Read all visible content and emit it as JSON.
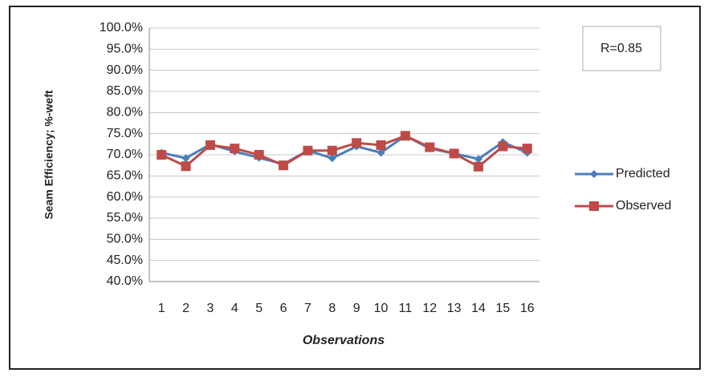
{
  "chart_data": {
    "type": "line",
    "y_label": "Seam Efficiency; %-weft",
    "x_label": "Observations",
    "annotation": "R=0.85",
    "categories": [
      "1",
      "2",
      "3",
      "4",
      "5",
      "6",
      "7",
      "8",
      "9",
      "10",
      "11",
      "12",
      "13",
      "14",
      "15",
      "16"
    ],
    "series": [
      {
        "name": "Predicted",
        "color": "#4a7ebb",
        "marker": "diamond",
        "values": [
          70.5,
          69.2,
          72.5,
          70.8,
          69.3,
          67.8,
          71,
          69.2,
          72,
          70.5,
          74.5,
          71.5,
          70.3,
          69,
          73,
          70.5
        ]
      },
      {
        "name": "Observed",
        "color": "#be4b48",
        "marker": "square",
        "values": [
          70,
          67.3,
          72.3,
          71.5,
          70,
          67.5,
          71,
          71,
          72.8,
          72.3,
          74.5,
          71.8,
          70.3,
          67.2,
          72,
          71.5
        ]
      }
    ],
    "ylim": [
      40,
      100
    ],
    "yticks": [
      {
        "value": 40,
        "label": "40.0%"
      },
      {
        "value": 45,
        "label": "45.0%"
      },
      {
        "value": 50,
        "label": "50.0%"
      },
      {
        "value": 55,
        "label": "55.0%"
      },
      {
        "value": 60,
        "label": "60.0%"
      },
      {
        "value": 65,
        "label": "65.0%"
      },
      {
        "value": 70,
        "label": "70.0%"
      },
      {
        "value": 75,
        "label": "75.0%"
      },
      {
        "value": 80,
        "label": "80.0%"
      },
      {
        "value": 85,
        "label": "85.0%"
      },
      {
        "value": 90,
        "label": "90.0%"
      },
      {
        "value": 95,
        "label": "95.0%"
      },
      {
        "value": 100,
        "label": "100.0%"
      }
    ],
    "grid": true,
    "legend": "right"
  }
}
